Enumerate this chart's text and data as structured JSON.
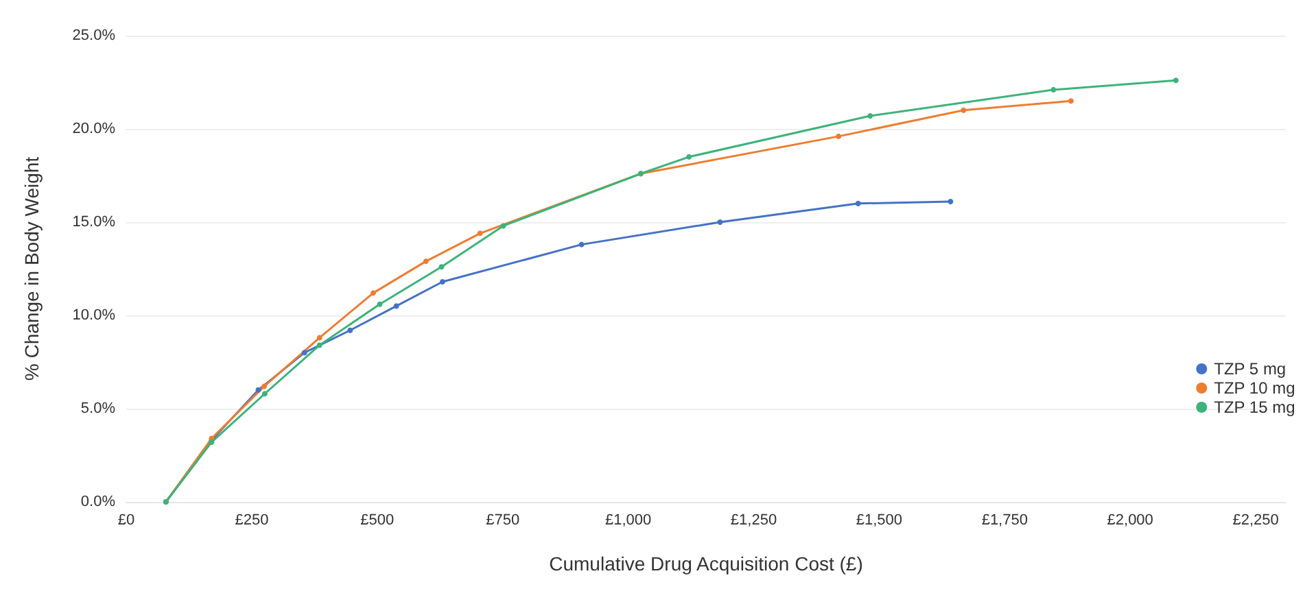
{
  "chart_data": {
    "type": "line",
    "xlabel": "Cumulative Drug Acquisition Cost (£)",
    "ylabel": "% Change in Body Weight",
    "xlim": [
      0,
      2310
    ],
    "xticks": [
      {
        "value": 0,
        "label": "£0"
      },
      {
        "value": 250,
        "label": "£250"
      },
      {
        "value": 500,
        "label": "£500"
      },
      {
        "value": 750,
        "label": "£750"
      },
      {
        "value": 1000,
        "label": "£1,000"
      },
      {
        "value": 1250,
        "label": "£1,250"
      },
      {
        "value": 1500,
        "label": "£1,500"
      },
      {
        "value": 1750,
        "label": "£1,750"
      },
      {
        "value": 2000,
        "label": "£2,000"
      },
      {
        "value": 2250,
        "label": "£2,250"
      }
    ],
    "ylim": [
      0,
      25
    ],
    "yticks": [
      {
        "value": 0,
        "label": "0.0%"
      },
      {
        "value": 5,
        "label": "5.0%"
      },
      {
        "value": 10,
        "label": "10.0%"
      },
      {
        "value": 15,
        "label": "15.0%"
      },
      {
        "value": 20,
        "label": "20.0%"
      },
      {
        "value": 25,
        "label": "25.0%"
      }
    ],
    "grid": "y",
    "legend": "right",
    "marker": "circle",
    "line_style": "solid",
    "series": [
      {
        "name": "TZP 5 mg",
        "color": "#4472c4",
        "x": [
          79,
          170,
          263,
          355,
          446,
          538,
          630,
          907,
          1183,
          1458,
          1642
        ],
        "values": [
          0,
          3.3,
          6.0,
          8.0,
          9.2,
          10.5,
          11.8,
          13.8,
          15.0,
          16.0,
          16.1
        ]
      },
      {
        "name": "TZP 10 mg",
        "color": "#ed7d31",
        "x": [
          79,
          170,
          275,
          385,
          492,
          597,
          705,
          1025,
          1419,
          1668,
          1882
        ],
        "values": [
          0,
          3.4,
          6.2,
          8.8,
          11.2,
          12.9,
          14.4,
          17.6,
          19.6,
          21.0,
          21.5
        ]
      },
      {
        "name": "TZP 15 mg",
        "color": "#3cb37a",
        "x": [
          79,
          170,
          276,
          385,
          505,
          628,
          751,
          1025,
          1121,
          1482,
          1847,
          2091
        ],
        "values": [
          0,
          3.2,
          5.8,
          8.4,
          10.6,
          12.6,
          14.8,
          17.6,
          18.5,
          20.7,
          22.1,
          22.6
        ]
      }
    ]
  }
}
